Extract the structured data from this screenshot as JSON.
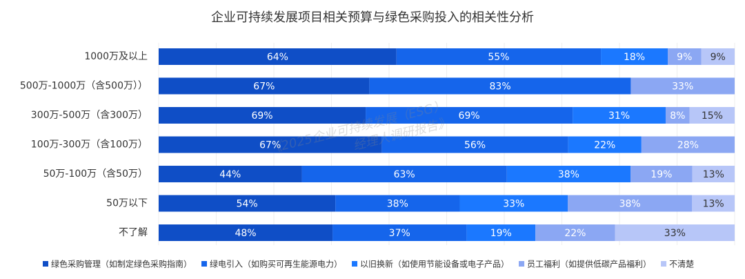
{
  "chart_data": {
    "type": "stacked-bar-horizontal",
    "title": "企业可持续发展项目相关预算与绿色采购投入的相关性分析",
    "watermark": [
      "《2025企业可持续发展（ESG）",
      "经理人调研报告》"
    ],
    "categories": [
      "1000万及以上",
      "500万-1000万（含500万））",
      "300万-500万（含300万）",
      "100万-300万（含100万）",
      "50万-100万（含50万）",
      "50万以下",
      "不了解"
    ],
    "series": [
      {
        "name": "绿色采购管理（如制定绿色采购指南）",
        "color": "#0f4ec6",
        "values": [
          64,
          67,
          69,
          67,
          44,
          54,
          48
        ],
        "value_labels": [
          "64%",
          "67%",
          "69%",
          "67%",
          "44%",
          "54%",
          "48%"
        ]
      },
      {
        "name": "绿电引入（如购买可再生能源电力）",
        "color": "#1565eb",
        "values": [
          55,
          83,
          69,
          56,
          63,
          38,
          37
        ],
        "value_labels": [
          "55%",
          "83%",
          "69%",
          "56%",
          "63%",
          "38%",
          "37%"
        ]
      },
      {
        "name": "以旧换新（如使用节能设备或电子产品）",
        "color": "#1b78ff",
        "values": [
          18,
          null,
          31,
          22,
          38,
          33,
          19
        ],
        "value_labels": [
          "18%",
          null,
          "31%",
          "22%",
          "38%",
          "33%",
          "19%"
        ]
      },
      {
        "name": "员工福利（如提供低碳产品福利）",
        "color": "#8ba7f3",
        "values": [
          9,
          33,
          8,
          28,
          19,
          38,
          22
        ],
        "value_labels": [
          "9%",
          "33%",
          "8%",
          "28%",
          "19%",
          "38%",
          "22%"
        ]
      },
      {
        "name": "不清楚",
        "color": "#b7c6f8",
        "values": [
          9,
          null,
          15,
          null,
          13,
          13,
          33
        ],
        "value_labels": [
          "9%",
          null,
          "15%",
          null,
          "13%",
          "13%",
          "33%"
        ]
      }
    ]
  }
}
